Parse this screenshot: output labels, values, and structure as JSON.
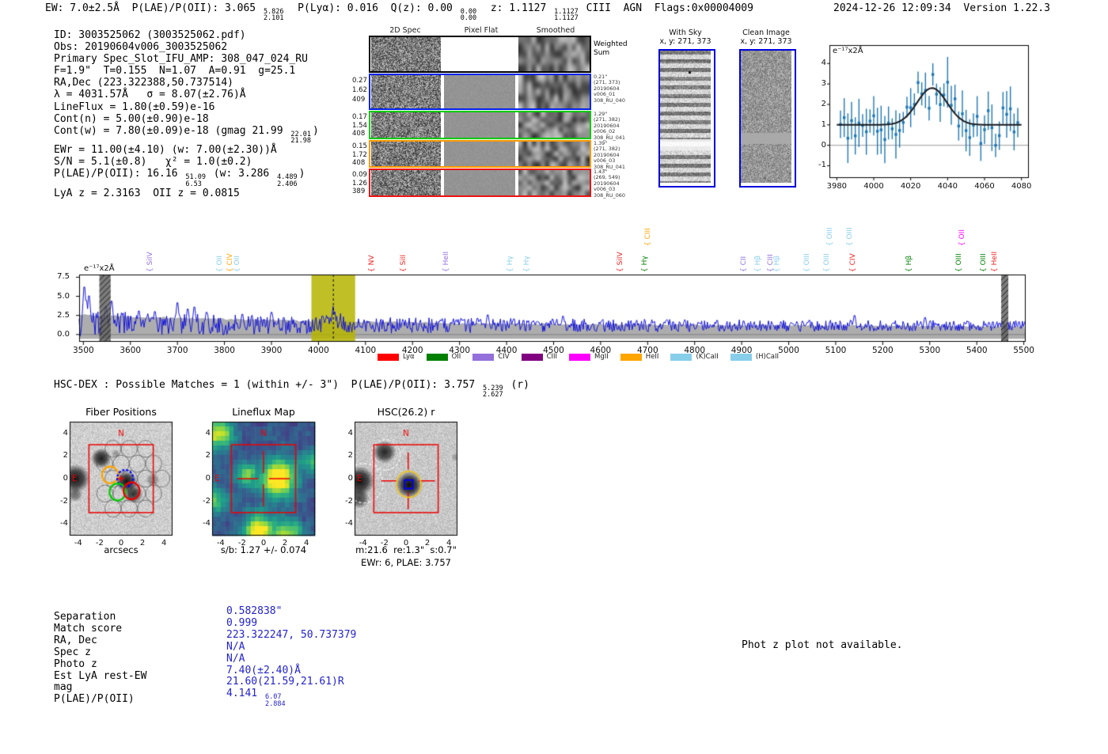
{
  "header": {
    "summary_rich": "EW: 7.0±2.5Å  P(LAE)/P(OII): 3.065 [[5.826|2.101]]  P(Lyα): 0.016  Q(z): 0.00 [[0.00|0.00]]  z: 1.1127 [[1.1127|1.1127]] CIII  AGN  Flags:0x00004009",
    "timestamp": "2024-12-26 12:09:34",
    "version": "Version 1.22.3"
  },
  "info_block": {
    "lines": [
      "ID: 3003525062 (3003525062.pdf)",
      "Obs: 20190604v006_3003525062",
      "Primary Spec_Slot_IFU_AMP: 308_047_024_RU",
      "F=1.9\"  T=0.155  N=1.07  A=0.91  g=25.1",
      "RA,Dec (223.322388,50.737514)",
      "λ = 4031.57Å   σ = 8.07(±2.76)Å",
      "LineFlux = 1.80(±0.59)e-16",
      "Cont(n) = 5.00(±0.90)e-18",
      "Cont(w) = 7.80(±0.09)e-18 (gmag 21.99 [[22.01|21.98]])",
      "EWr = 11.00(±4.10) (w: 7.00(±2.30))Å",
      "S/N = 5.1(±0.8)   χ² = 1.0(±0.2)",
      "P(LAE)/P(OII): 16.16 [[51.09|6.53]] (w: 3.286 [[4.489|2.406]])",
      "LyA z = 2.3163  OII z = 0.0815"
    ]
  },
  "spec2d": {
    "column_headers": [
      "2D Spec",
      "Pixel Flat",
      "Smoothed"
    ],
    "rows": [
      {
        "border": "#000000",
        "left": [],
        "right": [
          "Weighted",
          "Sum"
        ],
        "flat": "white"
      },
      {
        "border": "#0022ee",
        "left": [
          "0.27",
          "1.62",
          "409"
        ],
        "right": [
          "0.21\"",
          "(271, 373)",
          "20190604",
          "v006_01",
          "308_RU_040"
        ],
        "flat": "gray"
      },
      {
        "border": "#00cc00",
        "left": [
          "0.17",
          "1.54",
          "408"
        ],
        "right": [
          "1.29\"",
          "(271, 382)",
          "20190604",
          "v006_02",
          "308_RU_041"
        ],
        "flat": "gray"
      },
      {
        "border": "#ff9900",
        "left": [
          "0.15",
          "1.72",
          "408"
        ],
        "right": [
          "1.39\"",
          "(271, 382)",
          "20190604",
          "v006_03",
          "308_RU_041"
        ],
        "flat": "gray"
      },
      {
        "border": "#ee1111",
        "left": [
          "0.09",
          "1.26",
          "389"
        ],
        "right": [
          "1.43\"",
          "(269, 549)",
          "20190604",
          "v006_03",
          "308_RU_060"
        ],
        "flat": "gray"
      }
    ]
  },
  "withsky": {
    "title": "With Sky",
    "subtitle": "x, y: 271, 373"
  },
  "clean": {
    "title": "Clean Image",
    "subtitle": "x, y: 271, 373"
  },
  "hsc_dex_line": "HSC-DEX : Possible Matches = 1 (within +/- 3\")  P(LAE)/P(OII): 3.757 [[5.239|2.627]] (r)",
  "match_table": {
    "rows": [
      {
        "label": "Separation",
        "value": "0.582838\""
      },
      {
        "label": "Match score",
        "value": "0.999"
      },
      {
        "label": "RA, Dec",
        "value": "223.322247, 50.737379"
      },
      {
        "label": "Spec z",
        "value": "N/A"
      },
      {
        "label": "Photo z",
        "value": "N/A"
      },
      {
        "label": "Est LyA rest-EW",
        "value": "7.40(±2.40)Å"
      },
      {
        "label": "mag",
        "value": "21.60(21.59,21.61)R"
      },
      {
        "label": "P(LAE)/P(OII)",
        "value": "4.141 [[6.07|2.884]]"
      }
    ]
  },
  "notice": "Phot z plot not available.",
  "chart_data": [
    {
      "id": "line_fit",
      "type": "scatter",
      "corner_label": "e⁻¹⁷x2Å",
      "xlim": [
        3976,
        4084
      ],
      "ylim": [
        -1.6,
        4.9
      ],
      "xticks": [
        3980,
        4000,
        4020,
        4040,
        4060,
        4080
      ],
      "yticks": [
        -1,
        0,
        1,
        2,
        3,
        4
      ],
      "fit": {
        "model": "gaussian",
        "center": 4031.57,
        "sigma": 8.07,
        "baseline": 1.0,
        "amplitude": 1.8,
        "peak": 2.8
      },
      "point_color": "#1f77b4",
      "fit_color": "#1a1a1a",
      "point_spacing": 2,
      "typical_error": 0.9
    },
    {
      "id": "full_spectrum",
      "type": "line",
      "ylabel": "e⁻¹⁷x2Å",
      "xlim": [
        3491,
        5504
      ],
      "ylim": [
        -0.95,
        7.85
      ],
      "xticks": [
        3500,
        3600,
        3700,
        3800,
        3900,
        4000,
        4100,
        4200,
        4300,
        4400,
        4500,
        4600,
        4700,
        4800,
        4900,
        5000,
        5100,
        5200,
        5300,
        5400,
        5500
      ],
      "yticks": [
        0.0,
        2.5,
        5.0,
        7.5
      ],
      "line_color": "#1414dd",
      "noise_envelope": {
        "left_level": 2.6,
        "right_level": 1.1,
        "fill_color": "#adadad"
      },
      "highlight": {
        "x0": 3985,
        "x1": 4078,
        "color": "#b5b400",
        "center_line": 4031.57
      },
      "masked_bands": [
        [
          3534,
          3558
        ],
        [
          5452,
          5467
        ]
      ],
      "spikes": [
        [
          3502,
          7.25
        ],
        [
          3506,
          5.2
        ],
        [
          3512,
          5.9
        ],
        [
          3548,
          4.3
        ],
        [
          3560,
          5.1
        ],
        [
          3618,
          3.6
        ],
        [
          3652,
          3.5
        ],
        [
          3700,
          4.85
        ],
        [
          3722,
          3.9
        ],
        [
          3736,
          4.2
        ],
        [
          3762,
          3.4
        ],
        [
          3838,
          3.1
        ],
        [
          3900,
          3.4
        ],
        [
          4031,
          3.7
        ],
        [
          4360,
          3.0
        ],
        [
          4520,
          2.8
        ],
        [
          5140,
          2.9
        ],
        [
          5290,
          2.6
        ]
      ],
      "emission_labels": [
        {
          "name": "SiIV",
          "wave": 3643,
          "color": "#9370db",
          "row": 0
        },
        {
          "name": "OII",
          "wave": 3790,
          "color": "#87ceeb",
          "row": 0
        },
        {
          "name": "CIV",
          "wave": 3812,
          "color": "#ffa500",
          "row": 0
        },
        {
          "name": "OII",
          "wave": 3828,
          "color": "#87ceeb",
          "row": 0
        },
        {
          "name": "NV",
          "wave": 4114,
          "color": "#ee2222",
          "row": 0
        },
        {
          "name": "SiII",
          "wave": 4181,
          "color": "#ee2222",
          "row": 0
        },
        {
          "name": "HeII",
          "wave": 4272,
          "color": "#9370db",
          "row": 0
        },
        {
          "name": "Hγ",
          "wave": 4409,
          "color": "#87ceeb",
          "row": 0
        },
        {
          "name": "Hγ",
          "wave": 4443,
          "color": "#87ceeb",
          "row": 0
        },
        {
          "name": "SiIV",
          "wave": 4643,
          "color": "#ee2222",
          "row": 0
        },
        {
          "name": "Hγ",
          "wave": 4695,
          "color": "#008000",
          "row": 0
        },
        {
          "name": "CIII",
          "wave": 4701,
          "color": "#ffa500",
          "row": 1
        },
        {
          "name": "CII",
          "wave": 4905,
          "color": "#9370db",
          "row": 0
        },
        {
          "name": "Hβ",
          "wave": 4935,
          "color": "#87ceeb",
          "row": 0
        },
        {
          "name": "CIII",
          "wave": 4962,
          "color": "#9370db",
          "row": 0
        },
        {
          "name": "Hβ",
          "wave": 4975,
          "color": "#87ceeb",
          "row": 0
        },
        {
          "name": "OIII",
          "wave": 5040,
          "color": "#87ceeb",
          "row": 0
        },
        {
          "name": "OIII",
          "wave": 5082,
          "color": "#87ceeb",
          "row": 0
        },
        {
          "name": "OIII",
          "wave": 5089,
          "color": "#87ceeb",
          "row": 1
        },
        {
          "name": "OIII",
          "wave": 5130,
          "color": "#87ceeb",
          "row": 1
        },
        {
          "name": "CIV",
          "wave": 5137,
          "color": "#ee2222",
          "row": 0
        },
        {
          "name": "Hβ",
          "wave": 5257,
          "color": "#008000",
          "row": 0
        },
        {
          "name": "OIII",
          "wave": 5363,
          "color": "#008000",
          "row": 0
        },
        {
          "name": "OII",
          "wave": 5370,
          "color": "#ff00ff",
          "row": 1
        },
        {
          "name": "OIII",
          "wave": 5415,
          "color": "#008000",
          "row": 0
        },
        {
          "name": "HeII",
          "wave": 5439,
          "color": "#ee2222",
          "row": 0
        }
      ],
      "legend": [
        {
          "label": "Lyα",
          "color": "#ff0000"
        },
        {
          "label": "OII",
          "color": "#008000"
        },
        {
          "label": "CIV",
          "color": "#9370db"
        },
        {
          "label": "CIII",
          "color": "#800080"
        },
        {
          "label": "MgII",
          "color": "#ff00ff"
        },
        {
          "label": "HeII",
          "color": "#ffa500"
        },
        {
          "label": "(K)CaII",
          "color": "#87ceeb"
        },
        {
          "label": "(H)CaII",
          "color": "#87ceeb"
        }
      ],
      "legend_position": "bottom"
    },
    {
      "id": "fiber_positions",
      "type": "image",
      "title": "Fiber Positions",
      "xlabel": "arcsecs",
      "ticks": [
        -4,
        -2,
        0,
        2,
        4
      ],
      "compass": {
        "n": "N",
        "e": "E"
      },
      "box_color": "#ee0000",
      "fiber_radius": 0.75,
      "highlight_circles": [
        {
          "color": "#ffa500",
          "x": -1.02,
          "y": 0.33
        },
        {
          "color": "#0000ff",
          "x": 0.38,
          "y": 0.02,
          "dashed": true
        },
        {
          "color": "#00cc00",
          "x": -0.33,
          "y": -1.18
        },
        {
          "color": "#ee0000",
          "x": 0.98,
          "y": -1.08
        }
      ]
    },
    {
      "id": "lineflux_map",
      "type": "heatmap",
      "title": "Lineflux Map",
      "xlabel": "s/b: 1.27 +/- 0.074",
      "ticks": [
        -4,
        -2,
        0,
        2,
        4
      ],
      "compass": {
        "n": "N",
        "e": "E"
      },
      "colormap": "viridis",
      "box_color": "#ee0000"
    },
    {
      "id": "hsc_cutout",
      "type": "image",
      "title": "HSC(26.2) r",
      "xlabel": "m:21.6  re:1.3\"  s:0.7\"",
      "xlabel2": "EWr: 6, PLAE: 3.757",
      "ticks": [
        -4,
        -2,
        0,
        2,
        4
      ],
      "compass": {
        "n": "N",
        "e": "E"
      },
      "box_color": "#ee0000",
      "aperture": {
        "color": "#eec31c",
        "x": 0.25,
        "y": -0.5,
        "radius": 1.15
      },
      "catalog_marker": {
        "color": "#0000ee",
        "x": 0.25,
        "y": -0.5,
        "half": 0.38
      },
      "neighbor_circles": [
        {
          "x": -1.9,
          "y": 2.1,
          "radius": 1.35
        },
        {
          "x": -3.9,
          "y": -0.4,
          "radius": 1.75
        }
      ]
    }
  ]
}
